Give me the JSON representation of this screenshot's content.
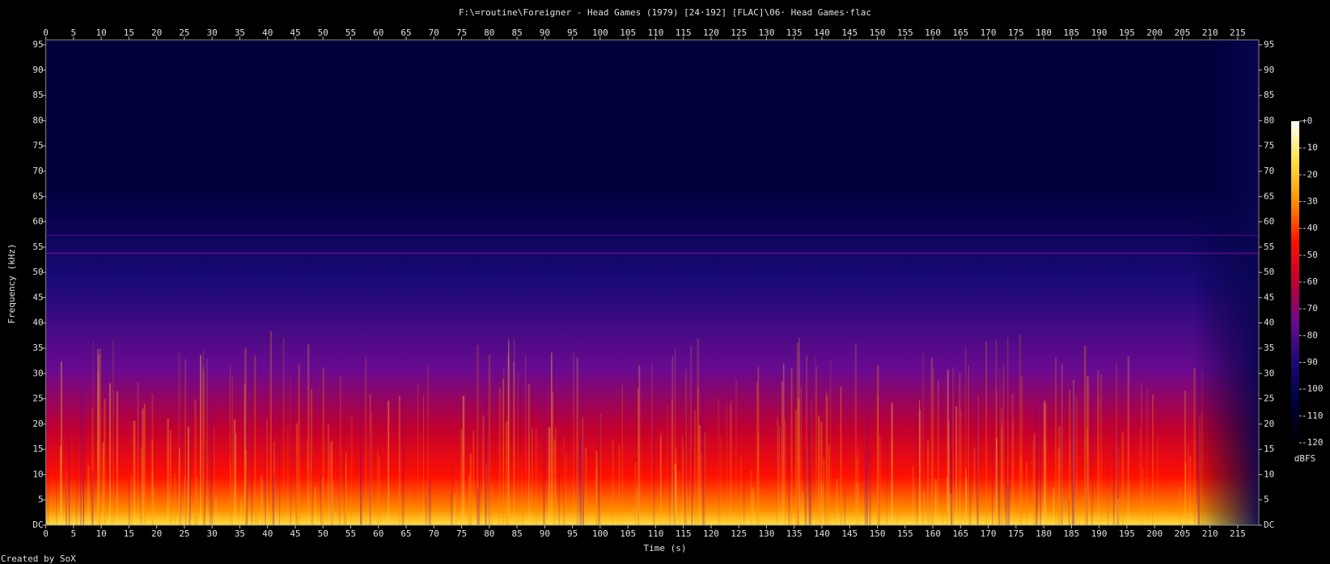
{
  "chart_data": {
    "type": "spectrogram",
    "title": "F:\\=routine\\Foreigner - Head Games (1979) [24·192] [FLAC]\\06· Head Games·flac",
    "x_label": "Time (s)",
    "y_label": "Frequency (kHz)",
    "footer": "Created by SoX",
    "xlim": [
      0,
      218.8
    ],
    "xticks": [
      0,
      5,
      10,
      15,
      20,
      25,
      30,
      35,
      40,
      45,
      50,
      55,
      60,
      65,
      70,
      75,
      80,
      85,
      90,
      95,
      100,
      105,
      110,
      115,
      120,
      125,
      130,
      135,
      140,
      145,
      150,
      155,
      160,
      165,
      170,
      175,
      180,
      185,
      190,
      195,
      200,
      205,
      210,
      215
    ],
    "ylim": [
      0,
      96
    ],
    "yticks": [
      {
        "value": 0,
        "label": "DC"
      },
      5,
      10,
      15,
      20,
      25,
      30,
      35,
      40,
      45,
      50,
      55,
      60,
      65,
      70,
      75,
      80,
      85,
      90,
      95
    ],
    "colormap": [
      "#000000",
      "#00003a",
      "#1a0a78",
      "#6a0a90",
      "#c00030",
      "#ff1000",
      "#ff9000",
      "#ffe040",
      "#ffffff"
    ],
    "colorbar": {
      "label": "dBFS",
      "lim": [
        -120,
        0
      ],
      "ticks": [
        {
          "value": 0,
          "label": "+0"
        },
        -10,
        -20,
        -30,
        -40,
        -50,
        -60,
        -70,
        -80,
        -90,
        -100,
        -110,
        -120
      ]
    }
  }
}
